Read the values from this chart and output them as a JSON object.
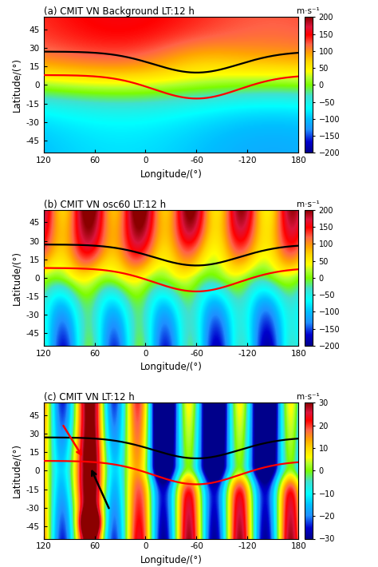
{
  "titles": [
    "(a) CMIT VN Background LT:12 h",
    "(b) CMIT VN osc60 LT:12 h",
    "(c) CMIT VN LT:12 h"
  ],
  "xlabel": "Longitude/(°)",
  "ylabel": "Latitude/(°)",
  "colorbar_label": "m·s⁻¹",
  "lon_ticks": [
    120,
    60,
    0,
    -60,
    -120,
    180
  ],
  "lat_ticks": [
    45,
    30,
    15,
    0,
    -15,
    -30,
    -45
  ],
  "panel_ab_clim": [
    -200,
    200
  ],
  "panel_c_clim": [
    -30,
    30
  ],
  "panel_ab_cticks": [
    200,
    150,
    100,
    50,
    0,
    -50,
    -100,
    -150,
    -200
  ],
  "panel_c_cticks": [
    30,
    20,
    10,
    0,
    -10,
    -20,
    -30
  ],
  "cmap_colors_ab": [
    [
      0.0,
      "#00008B"
    ],
    [
      0.08,
      "#0000CD"
    ],
    [
      0.17,
      "#1E90FF"
    ],
    [
      0.25,
      "#00BFFF"
    ],
    [
      0.33,
      "#00FFFF"
    ],
    [
      0.42,
      "#40E0D0"
    ],
    [
      0.5,
      "#7CFC00"
    ],
    [
      0.55,
      "#ADFF2F"
    ],
    [
      0.6,
      "#FFFF00"
    ],
    [
      0.67,
      "#FFD700"
    ],
    [
      0.73,
      "#FFA500"
    ],
    [
      0.8,
      "#FF6347"
    ],
    [
      0.87,
      "#FF0000"
    ],
    [
      0.93,
      "#DC143C"
    ],
    [
      1.0,
      "#8B0000"
    ]
  ],
  "cmap_colors_c": [
    [
      0.0,
      "#00008B"
    ],
    [
      0.08,
      "#0000CD"
    ],
    [
      0.17,
      "#1E90FF"
    ],
    [
      0.25,
      "#00BFFF"
    ],
    [
      0.33,
      "#00FFFF"
    ],
    [
      0.42,
      "#40E0D0"
    ],
    [
      0.5,
      "#7CFC00"
    ],
    [
      0.55,
      "#ADFF2F"
    ],
    [
      0.6,
      "#FFFF00"
    ],
    [
      0.67,
      "#FFD700"
    ],
    [
      0.73,
      "#FFA500"
    ],
    [
      0.8,
      "#FF6347"
    ],
    [
      0.87,
      "#FF0000"
    ],
    [
      0.93,
      "#DC143C"
    ],
    [
      1.0,
      "#8B0000"
    ]
  ]
}
